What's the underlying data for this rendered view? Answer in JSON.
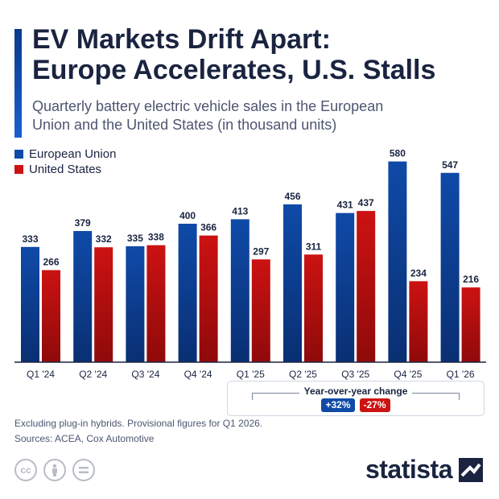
{
  "header": {
    "title_line1": "EV Markets Drift Apart:",
    "title_line2": "Europe Accelerates, U.S. Stalls",
    "subtitle_line1": "Quarterly battery electric vehicle sales in the European",
    "subtitle_line2": "Union and the United States (in thousand units)"
  },
  "colors": {
    "eu": "#0f4aa8",
    "us": "#cc1212",
    "accent": "#0a3a8c"
  },
  "legend": {
    "eu": "European Union",
    "us": "United States"
  },
  "chart_data": {
    "type": "bar",
    "categories": [
      "Q1 '24",
      "Q2 '24",
      "Q3 '24",
      "Q4 '24",
      "Q1 '25",
      "Q2 '25",
      "Q3 '25",
      "Q4 '25",
      "Q1 '26"
    ],
    "series": [
      {
        "name": "European Union",
        "values": [
          333,
          379,
          335,
          400,
          413,
          456,
          431,
          580,
          547
        ]
      },
      {
        "name": "United States",
        "values": [
          266,
          332,
          338,
          366,
          297,
          311,
          437,
          234,
          216
        ]
      }
    ],
    "ylim": [
      0,
      600
    ],
    "grid": false,
    "legend_position": "top-left"
  },
  "yoy": {
    "title": "Year-over-year change",
    "eu_change": "+32%",
    "us_change": "-27%"
  },
  "notes": {
    "line1": "Excluding plug-in hybrids. Provisional figures for Q1 2026.",
    "line2": "Sources: ACEA, Cox Automotive"
  },
  "license_icons": [
    "cc-icon",
    "person-icon",
    "equals-icon"
  ],
  "brand": {
    "name": "statista"
  }
}
